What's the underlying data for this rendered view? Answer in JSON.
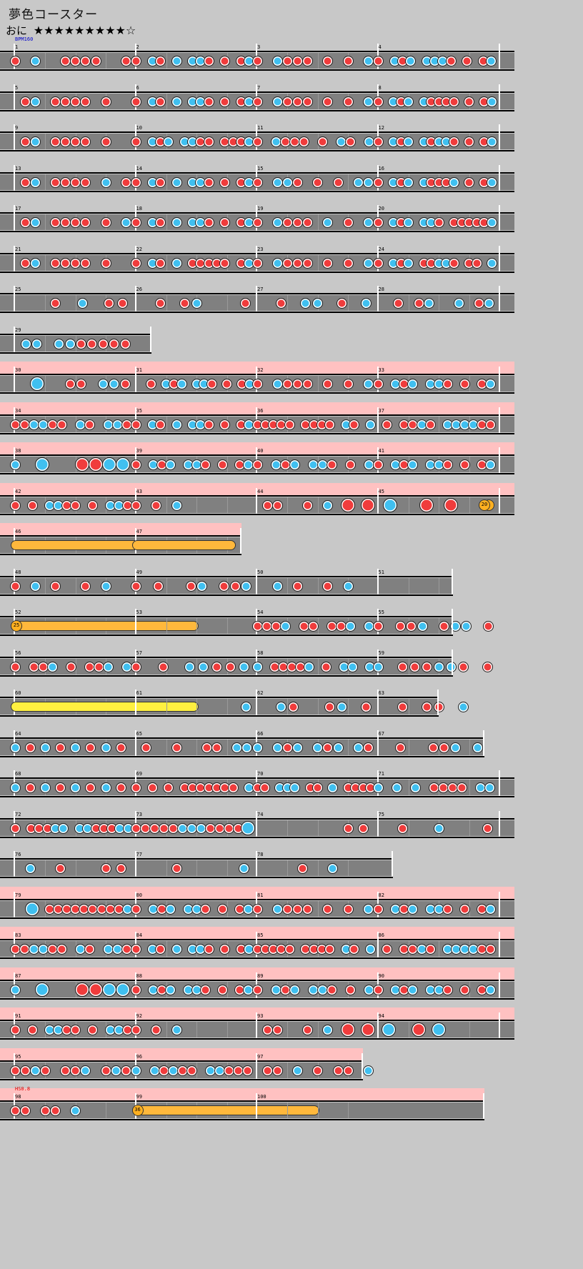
{
  "song": {
    "title": "夢色コースター",
    "course": "おに",
    "stars": "★★★★★★★★★☆"
  },
  "colors": {
    "background": "#c8c8c8",
    "lane": "#808080",
    "gogo": "#ffc1c1",
    "don": "#f03c3c",
    "ka": "#40c0f0",
    "roll_orange": "#ffb83c",
    "roll_yellow": "#fff040",
    "balloon": "#ffb020"
  },
  "commands": [
    {
      "bar": 1,
      "text": "BPM160",
      "color": "#0000cc"
    },
    {
      "bar": 98,
      "text": "HS0.8",
      "color": "#dd0000"
    }
  ],
  "balloons": [
    {
      "bar": 45,
      "count": "20"
    },
    {
      "bar": 52,
      "count": "25"
    },
    {
      "bar": 99,
      "count": "36"
    }
  ],
  "rows": [
    {
      "gogo": false,
      "bars": [
        {
          "n": "1",
          "notes": "d.k..dddd..d"
        },
        {
          "n": "2",
          "notes": "d.kd.k.kkd.d.dk"
        },
        {
          "n": "3",
          "notes": "d.kddd.d.d.k"
        },
        {
          "n": "4",
          "notes": "d.kdk.kkkd.d.dk"
        }
      ]
    },
    {
      "gogo": false,
      "bars": [
        {
          "n": "5",
          "notes": ".dk.dddd.d.."
        },
        {
          "n": "6",
          "notes": "d.kd.k.kkd.d.dk"
        },
        {
          "n": "7",
          "notes": "d.kddd.d.d.k"
        },
        {
          "n": "8",
          "notes": "d.kdk.kdddd.d.dk"
        }
      ]
    },
    {
      "gogo": false,
      "bars": [
        {
          "n": "9",
          "notes": ".dk.dddd.d.."
        },
        {
          "n": "10",
          "notes": "d.kdk.kkdd.dddk"
        },
        {
          "n": "11",
          "notes": "d.kddd.d.kd.k"
        },
        {
          "n": "12",
          "notes": "d.kdk.kdkkd.d.dk"
        }
      ]
    },
    {
      "gogo": false,
      "bars": [
        {
          "n": "13",
          "notes": ".dk.dddd.k.d"
        },
        {
          "n": "14",
          "notes": "d.kd.k.kkd.d.dk"
        },
        {
          "n": "15",
          "notes": "d.kkd.d.d.kk"
        },
        {
          "n": "16",
          "notes": "d.kdk.kdddk.d.dk"
        }
      ]
    },
    {
      "gogo": false,
      "bars": [
        {
          "n": "17",
          "notes": ".dk.dddd.d.k"
        },
        {
          "n": "18",
          "notes": "d.kd.k.kkd.d.dk"
        },
        {
          "n": "19",
          "notes": "d.kddd.k.d.k"
        },
        {
          "n": "20",
          "notes": "d.kdk.kkd.dddddk"
        }
      ]
    },
    {
      "gogo": false,
      "bars": [
        {
          "n": "21",
          "notes": ".dk.dddd.d.."
        },
        {
          "n": "22",
          "notes": "d.kd.k.ddddd.dk"
        },
        {
          "n": "23",
          "notes": "d.kddd.d.d.k"
        },
        {
          "n": "24",
          "notes": "d.kdk.ddkkd.dd.k"
        }
      ]
    },
    {
      "gogo": false,
      "bars": [
        {
          "n": "25",
          "notes": "...d.k.dd"
        },
        {
          "n": "26",
          "notes": "..d.dk...d"
        },
        {
          "n": "27",
          "notes": "..d.kk.d.k"
        },
        {
          "n": "28",
          "notes": "..d.dk..k.dk"
        }
      ]
    },
    {
      "gogo": false,
      "width": 212,
      "bars": [
        {
          "n": "29",
          "notes": ".kk.kkddddd"
        }
      ]
    },
    {
      "gogo": true,
      "bars": [
        {
          "n": "30",
          "notes": "..K..dd.kkd"
        },
        {
          "n": "31",
          "notes": "..d.kdk.kkd.d.dk"
        },
        {
          "n": "32",
          "notes": "d.kddd.d.d.k"
        },
        {
          "n": "33",
          "notes": "d.kdk.kkd.d.dk"
        }
      ]
    },
    {
      "gogo": true,
      "bars": [
        {
          "n": "34",
          "notes": "ddkkdd.kd.kkd"
        },
        {
          "n": "35",
          "notes": "d.kd.k.kkd.d.dk"
        },
        {
          "n": "36",
          "notes": "ddddd.dddd.kd.k"
        },
        {
          "n": "37",
          "notes": ".d.ddkd.kkkkdd"
        }
      ]
    },
    {
      "gogo": true,
      "bars": [
        {
          "n": "38",
          "notes": "k.K..DDKK"
        },
        {
          "n": "39",
          "notes": "d.kdk.kkd.d.dk"
        },
        {
          "n": "40",
          "notes": "d.kdk.kkd.d.k"
        },
        {
          "n": "41",
          "notes": "d.kdk.kkd.d.dk"
        }
      ]
    },
    {
      "gogo": true,
      "bars": [
        {
          "n": "42",
          "notes": "d.d.kkdd.d.kkd"
        },
        {
          "n": "43",
          "notes": "d.d.k......."
        },
        {
          "n": "44",
          "notes": ".dd..d.k.D.D"
        },
        {
          "n": "45",
          "notes": ".K..D.D..b"
        }
      ]
    },
    {
      "gogo": true,
      "width": 338,
      "bars": [
        {
          "n": "46",
          "roll": "orange"
        },
        {
          "n": "47",
          "roll": "orange"
        }
      ]
    },
    {
      "gogo": false,
      "width": 634,
      "bars": [
        {
          "n": "48",
          "notes": "d.k.d..d.k.."
        },
        {
          "n": "49",
          "notes": "d.d..dk.ddk"
        },
        {
          "n": "50",
          "notes": "..k.d..d.k.."
        },
        {
          "n": "51",
          "notes": "............"
        }
      ]
    },
    {
      "gogo": false,
      "width": 634,
      "bars": [
        {
          "n": "52",
          "balloon": true,
          "roll": "orange"
        },
        {
          "n": "53",
          "notes": "......"
        },
        {
          "n": "54",
          "notes": "dddk.dd.ddk.k"
        },
        {
          "n": "55",
          "notes": "d.ddk.dkk.d"
        }
      ]
    },
    {
      "gogo": false,
      "width": 634,
      "bars": [
        {
          "n": "56",
          "notes": "d.ddk.d.ddk.k"
        },
        {
          "n": "57",
          "notes": "d.d.kkddk"
        },
        {
          "n": "58",
          "notes": "k.ddddk.d.kk.k"
        },
        {
          "n": "59",
          "notes": "k.dddkkd.d"
        }
      ]
    },
    {
      "gogo": false,
      "width": 614,
      "bars": [
        {
          "n": "60",
          "roll": "yellow"
        },
        {
          "n": "61",
          "notes": "..........k"
        },
        {
          "n": "62",
          "notes": "..kd..dk.d"
        },
        {
          "n": "63",
          "notes": "..d.dd.k.."
        }
      ]
    },
    {
      "gogo": false,
      "width": 678,
      "bars": [
        {
          "n": "64",
          "notes": "kdkdkdkd"
        },
        {
          "n": "65",
          "notes": ".d..d..dd.kk"
        },
        {
          "n": "66",
          "notes": "k.kdk.kdk.kd"
        },
        {
          "n": "67",
          "notes": "..d..ddk.k."
        }
      ]
    },
    {
      "gogo": false,
      "bars": [
        {
          "n": "68",
          "notes": "kdkdkdkd"
        },
        {
          "n": "69",
          "notes": "d.d.d.ddddddd.k"
        },
        {
          "n": "70",
          "notes": "dd.kkk.dd.k.dddd"
        },
        {
          "n": "71",
          "notes": "k.k.k.dddd.kk"
        }
      ]
    },
    {
      "gogo": false,
      "bars": [
        {
          "n": "72",
          "notes": "d.dddkk.kkdddkk"
        },
        {
          "n": "73",
          "notes": "dddddkkkddddK"
        },
        {
          "n": "74",
          "notes": "......dd"
        },
        {
          "n": "75",
          "notes": "..d..k...d"
        }
      ]
    },
    {
      "gogo": false,
      "width": 550,
      "bars": [
        {
          "n": "76",
          "notes": ".k.d..dd"
        },
        {
          "n": "77",
          "notes": "...d....k"
        },
        {
          "n": "78",
          "notes": "...d.k.."
        }
      ]
    },
    {
      "gogo": true,
      "bars": [
        {
          "n": "79",
          "notes": "..K.dddddddddk"
        },
        {
          "n": "80",
          "notes": "d.kdk.kkd.d.dk"
        },
        {
          "n": "81",
          "notes": "d.kddd.d.d.k"
        },
        {
          "n": "82",
          "notes": "d.kdk.kkd.d.dk"
        }
      ]
    },
    {
      "gogo": true,
      "bars": [
        {
          "n": "83",
          "notes": "ddkkdd.kd.kkd"
        },
        {
          "n": "84",
          "notes": "d.kd.k.kkd.d.dk"
        },
        {
          "n": "85",
          "notes": "ddddd.dddd.kd.k"
        },
        {
          "n": "86",
          "notes": ".d.ddkd.kkkkdd"
        }
      ]
    },
    {
      "gogo": true,
      "bars": [
        {
          "n": "87",
          "notes": "k.K..DDKK"
        },
        {
          "n": "88",
          "notes": "d.kdk.kkd.d.dk"
        },
        {
          "n": "89",
          "notes": "d.kdk.kkd.d.k"
        },
        {
          "n": "90",
          "notes": "d.kdk.kkd.d.dk"
        }
      ]
    },
    {
      "gogo": true,
      "bars": [
        {
          "n": "91",
          "notes": "d.d.kkdd.d.kkd"
        },
        {
          "n": "92",
          "notes": "d.d.k......."
        },
        {
          "n": "93",
          "notes": ".dd..d.k.D.D"
        },
        {
          "n": "94",
          "notes": ".K..D.K....."
        }
      ]
    },
    {
      "gogo": true,
      "width": 508,
      "bars": [
        {
          "n": "95",
          "notes": "ddkd.ddk.dkd"
        },
        {
          "n": "96",
          "notes": "k.kdkdd.kkddd"
        },
        {
          "n": "97",
          "notes": ".dd.k.d.dd.k"
        }
      ]
    },
    {
      "gogo": true,
      "width": 678,
      "bars": [
        {
          "n": "98",
          "notes": "dd.dd.k....."
        },
        {
          "n": "99",
          "balloon": true,
          "roll": "orange"
        },
        {
          "n": "100",
          "notes": ""
        }
      ]
    }
  ]
}
